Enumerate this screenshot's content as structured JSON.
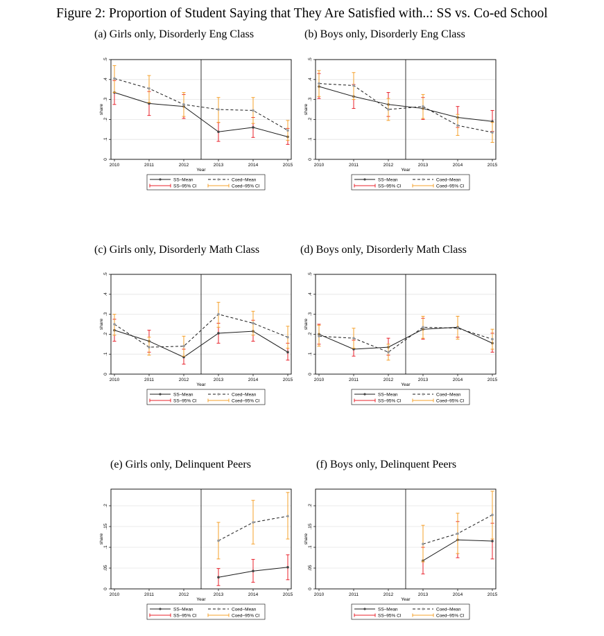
{
  "figure_title": "Figure 2: Proportion of Student Saying that They Are Satisfied with..: SS vs. Co-ed School",
  "legend": {
    "ss_mean": "SS–Mean",
    "coed_mean": "Coed–Mean",
    "ss_ci": "SS–95% CI",
    "coed_ci": "Coed–95% CI"
  },
  "colors": {
    "ss_mean": "#1a1a1a",
    "coed_mean": "#1a1a1a",
    "ss_ci": "#e8202a",
    "coed_ci": "#f5a02a",
    "ss_marker": "#444444",
    "coed_marker": "#999999"
  },
  "chart_data": [
    {
      "subtitle": "(a) Girls only, Disorderly Eng Class",
      "type": "line",
      "xlabel": "Year",
      "ylabel": "share",
      "x": [
        2010,
        2011,
        2012,
        2013,
        2014,
        2015
      ],
      "xlim": [
        2010,
        2015
      ],
      "ylim": [
        0,
        0.5
      ],
      "yticks": [
        0,
        0.1,
        0.2,
        0.3,
        0.4,
        0.5
      ],
      "ytick_labels": [
        "0",
        ".1",
        ".2",
        ".3",
        ".4",
        ".5"
      ],
      "vline": 2012.5,
      "series": [
        {
          "name": "SS–Mean",
          "values": [
            0.335,
            0.28,
            0.265,
            0.138,
            0.16,
            0.113
          ],
          "ci_low": [
            0.275,
            0.22,
            0.205,
            0.09,
            0.11,
            0.075
          ],
          "ci_high": [
            0.395,
            0.34,
            0.325,
            0.185,
            0.21,
            0.155
          ]
        },
        {
          "name": "Coed–Mean",
          "values": [
            0.405,
            0.355,
            0.275,
            0.25,
            0.245,
            0.145
          ],
          "ci_low": [
            0.335,
            0.285,
            0.215,
            0.185,
            0.18,
            0.095
          ],
          "ci_high": [
            0.47,
            0.42,
            0.335,
            0.31,
            0.31,
            0.195
          ]
        }
      ]
    },
    {
      "subtitle": "(b) Boys only, Disorderly Eng Class",
      "type": "line",
      "xlabel": "Year",
      "ylabel": "share",
      "x": [
        2010,
        2011,
        2012,
        2013,
        2014,
        2015
      ],
      "xlim": [
        2010,
        2015
      ],
      "ylim": [
        0,
        0.5
      ],
      "yticks": [
        0,
        0.1,
        0.2,
        0.3,
        0.4,
        0.5
      ],
      "ytick_labels": [
        "0",
        ".1",
        ".2",
        ".3",
        ".4",
        ".5"
      ],
      "vline": 2012.5,
      "series": [
        {
          "name": "SS–Mean",
          "values": [
            0.365,
            0.315,
            0.275,
            0.255,
            0.21,
            0.19
          ],
          "ci_low": [
            0.305,
            0.255,
            0.215,
            0.2,
            0.16,
            0.14
          ],
          "ci_high": [
            0.43,
            0.375,
            0.335,
            0.31,
            0.265,
            0.245
          ]
        },
        {
          "name": "Coed–Mean",
          "values": [
            0.38,
            0.37,
            0.25,
            0.265,
            0.17,
            0.135
          ],
          "ci_low": [
            0.315,
            0.3,
            0.195,
            0.205,
            0.12,
            0.085
          ],
          "ci_high": [
            0.445,
            0.435,
            0.305,
            0.325,
            0.225,
            0.185
          ]
        }
      ]
    },
    {
      "subtitle": "(c) Girls only, Disorderly Math Class",
      "type": "line",
      "xlabel": "Year",
      "ylabel": "share",
      "x": [
        2010,
        2011,
        2012,
        2013,
        2014,
        2015
      ],
      "xlim": [
        2010,
        2015
      ],
      "ylim": [
        0,
        0.5
      ],
      "yticks": [
        0,
        0.1,
        0.2,
        0.3,
        0.4,
        0.5
      ],
      "ytick_labels": [
        "0",
        ".1",
        ".2",
        ".3",
        ".4",
        ".5"
      ],
      "vline": 2012.5,
      "series": [
        {
          "name": "SS–Mean",
          "values": [
            0.22,
            0.165,
            0.085,
            0.205,
            0.215,
            0.11
          ],
          "ci_low": [
            0.165,
            0.11,
            0.05,
            0.155,
            0.165,
            0.07
          ],
          "ci_high": [
            0.275,
            0.22,
            0.125,
            0.255,
            0.27,
            0.155
          ]
        },
        {
          "name": "Coed–Mean",
          "values": [
            0.25,
            0.135,
            0.14,
            0.3,
            0.255,
            0.185
          ],
          "ci_low": [
            0.195,
            0.095,
            0.09,
            0.235,
            0.195,
            0.13
          ],
          "ci_high": [
            0.3,
            0.185,
            0.19,
            0.36,
            0.315,
            0.24
          ]
        }
      ]
    },
    {
      "subtitle": "(d) Boys only, Disorderly Math Class",
      "type": "line",
      "xlabel": "Year",
      "ylabel": "share",
      "x": [
        2010,
        2011,
        2012,
        2013,
        2014,
        2015
      ],
      "xlim": [
        2010,
        2015
      ],
      "ylim": [
        0,
        0.5
      ],
      "yticks": [
        0,
        0.1,
        0.2,
        0.3,
        0.4,
        0.5
      ],
      "ytick_labels": [
        "0",
        ".1",
        ".2",
        ".3",
        ".4",
        ".5"
      ],
      "vline": 2012.5,
      "series": [
        {
          "name": "SS–Mean",
          "values": [
            0.2,
            0.125,
            0.135,
            0.225,
            0.235,
            0.155
          ],
          "ci_low": [
            0.15,
            0.09,
            0.095,
            0.175,
            0.185,
            0.11
          ],
          "ci_high": [
            0.25,
            0.17,
            0.18,
            0.28,
            0.29,
            0.205
          ]
        },
        {
          "name": "Coed–Mean",
          "values": [
            0.19,
            0.18,
            0.11,
            0.235,
            0.23,
            0.175
          ],
          "ci_low": [
            0.14,
            0.13,
            0.07,
            0.18,
            0.175,
            0.125
          ],
          "ci_high": [
            0.245,
            0.23,
            0.15,
            0.29,
            0.29,
            0.225
          ]
        }
      ]
    },
    {
      "subtitle": "(e) Girls only, Delinquent Peers",
      "type": "line",
      "xlabel": "Year",
      "ylabel": "share",
      "x": [
        2013,
        2014,
        2015
      ],
      "xticks": [
        2010,
        2011,
        2012,
        2013,
        2014,
        2015
      ],
      "xlim": [
        2010,
        2015
      ],
      "ylim": [
        0,
        0.24
      ],
      "yticks": [
        0,
        0.05,
        0.1,
        0.15,
        0.2
      ],
      "ytick_labels": [
        "0",
        ".05",
        ".1",
        ".15",
        ".2"
      ],
      "vline": 2012.5,
      "series": [
        {
          "name": "SS–Mean",
          "values": [
            0.028,
            0.043,
            0.052
          ],
          "ci_low": [
            0.008,
            0.016,
            0.022
          ],
          "ci_high": [
            0.049,
            0.071,
            0.082
          ]
        },
        {
          "name": "Coed–Mean",
          "values": [
            0.116,
            0.16,
            0.175
          ],
          "ci_low": [
            0.072,
            0.108,
            0.12
          ],
          "ci_high": [
            0.16,
            0.213,
            0.232
          ]
        }
      ]
    },
    {
      "subtitle": "(f) Boys only, Delinquent Peers",
      "type": "line",
      "xlabel": "Year",
      "ylabel": "share",
      "x": [
        2013,
        2014,
        2015
      ],
      "xticks": [
        2010,
        2011,
        2012,
        2013,
        2014,
        2015
      ],
      "xlim": [
        2010,
        2015
      ],
      "ylim": [
        0,
        0.24
      ],
      "yticks": [
        0,
        0.05,
        0.1,
        0.15,
        0.2
      ],
      "ytick_labels": [
        "0",
        ".05",
        ".1",
        ".15",
        ".2"
      ],
      "vline": 2012.5,
      "series": [
        {
          "name": "SS–Mean",
          "values": [
            0.068,
            0.118,
            0.115
          ],
          "ci_low": [
            0.036,
            0.075,
            0.072
          ],
          "ci_high": [
            0.1,
            0.162,
            0.158
          ]
        },
        {
          "name": "Coed–Mean",
          "values": [
            0.108,
            0.133,
            0.178
          ],
          "ci_low": [
            0.065,
            0.085,
            0.12
          ],
          "ci_high": [
            0.153,
            0.182,
            0.235
          ]
        }
      ]
    }
  ]
}
